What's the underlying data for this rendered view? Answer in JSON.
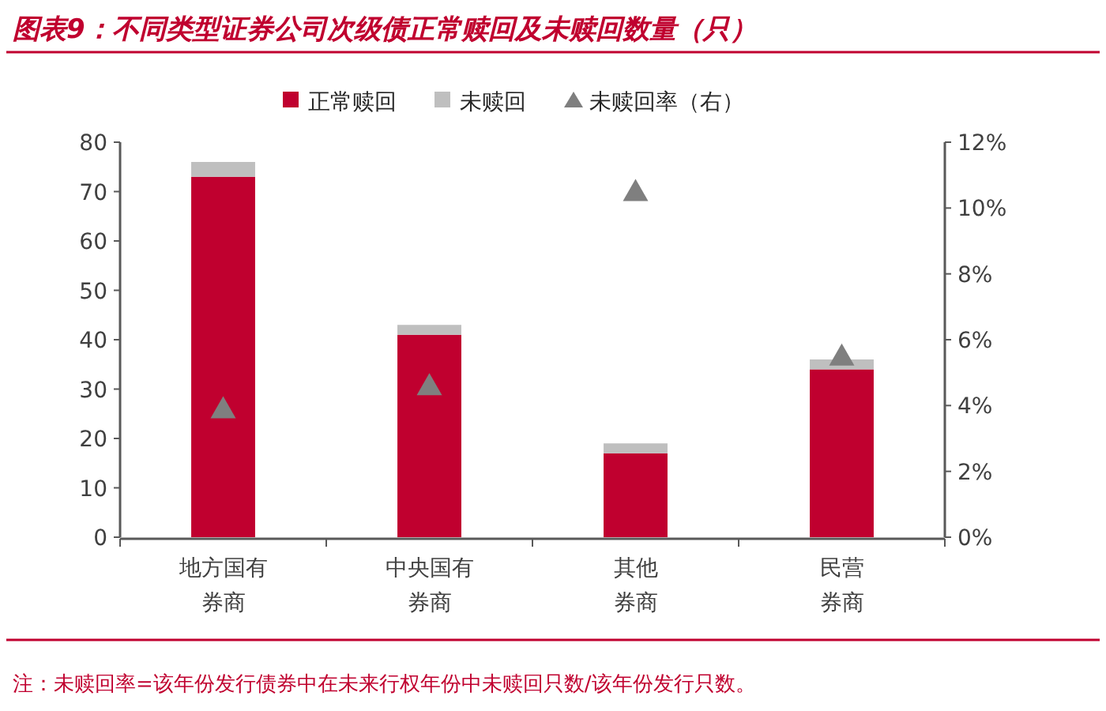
{
  "chart_data": {
    "type": "bar",
    "title": "图表9：不同类型证券公司次级债正常赎回及未赎回数量（只）",
    "categories": [
      "地方国有券商",
      "中央国有券商",
      "其他券商",
      "民营券商"
    ],
    "stacked": true,
    "legend": "top",
    "grid": false,
    "ylim": [
      0,
      80
    ],
    "yticks": [
      0,
      10,
      20,
      30,
      40,
      50,
      60,
      70,
      80
    ],
    "y2lim": [
      0,
      12
    ],
    "y2ticks": [
      {
        "value": 0,
        "label": "0%"
      },
      {
        "value": 2,
        "label": "2%"
      },
      {
        "value": 4,
        "label": "4%"
      },
      {
        "value": 6,
        "label": "6%"
      },
      {
        "value": 8,
        "label": "8%"
      },
      {
        "value": 10,
        "label": "10%"
      },
      {
        "value": 12,
        "label": "12%"
      }
    ],
    "series": [
      {
        "name": "正常赎回",
        "color": "#c0002f",
        "values": [
          73,
          41,
          17,
          34
        ]
      },
      {
        "name": "未赎回",
        "color": "#bfbfbf",
        "values": [
          3,
          2,
          2,
          2
        ]
      },
      {
        "name": "未赎回率（右）",
        "type": "scatter",
        "axis": "y2",
        "marker": "triangle",
        "color": "#7f7f7f",
        "values": [
          3.9,
          4.6,
          10.5,
          5.5
        ]
      }
    ],
    "annotations": [
      "注：未赎回率=该年份发行债券中在未来行权年份中未赎回只数/该年份发行只数。"
    ]
  }
}
